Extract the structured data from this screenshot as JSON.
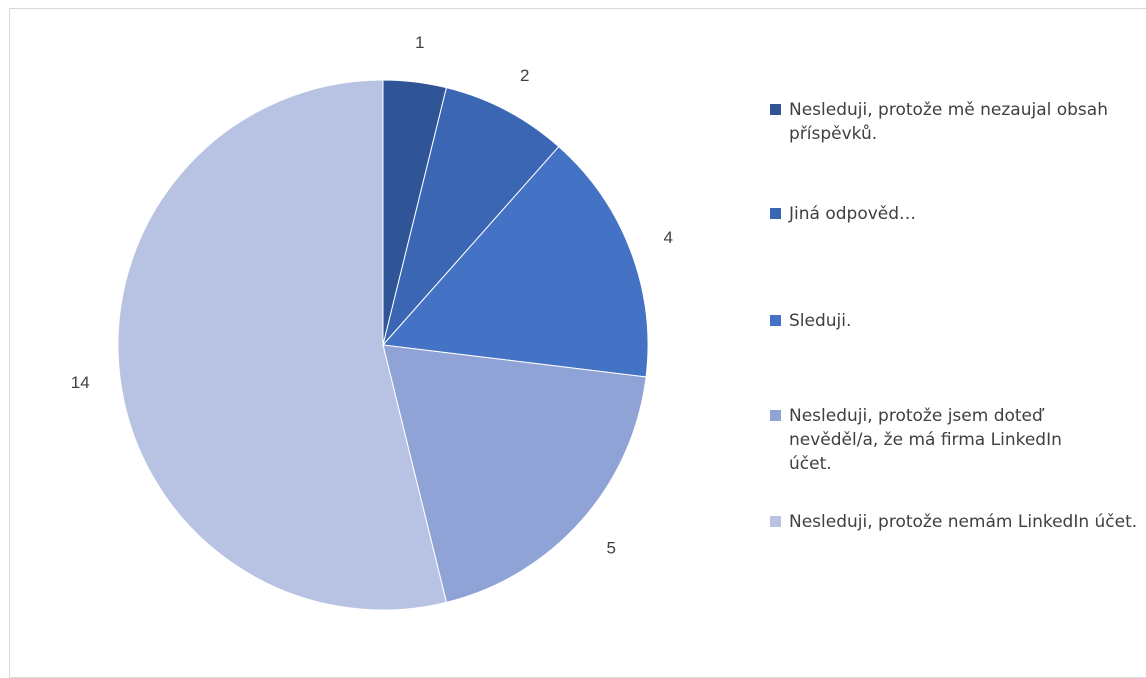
{
  "chart_data": {
    "type": "pie",
    "title": "",
    "slices": [
      {
        "label": "Nesleduji, protože mě nezaujal obsah příspěvků.",
        "value": 1,
        "color": "#2f5597"
      },
      {
        "label": "Jiná odpověd…",
        "value": 2,
        "color": "#3a66b3"
      },
      {
        "label": "Sleduji.",
        "value": 4,
        "color": "#4472c4"
      },
      {
        "label": "Nesleduji, protože jsem doteď nevěděl/a, že má firma LinkedIn účet.",
        "value": 5,
        "color": "#8fa3d6"
      },
      {
        "label": "Nesleduji, protože nemám LinkedIn účet.",
        "value": 14,
        "color": "#b8c2e2"
      }
    ],
    "legend_position": "right",
    "data_labels": "outside"
  }
}
